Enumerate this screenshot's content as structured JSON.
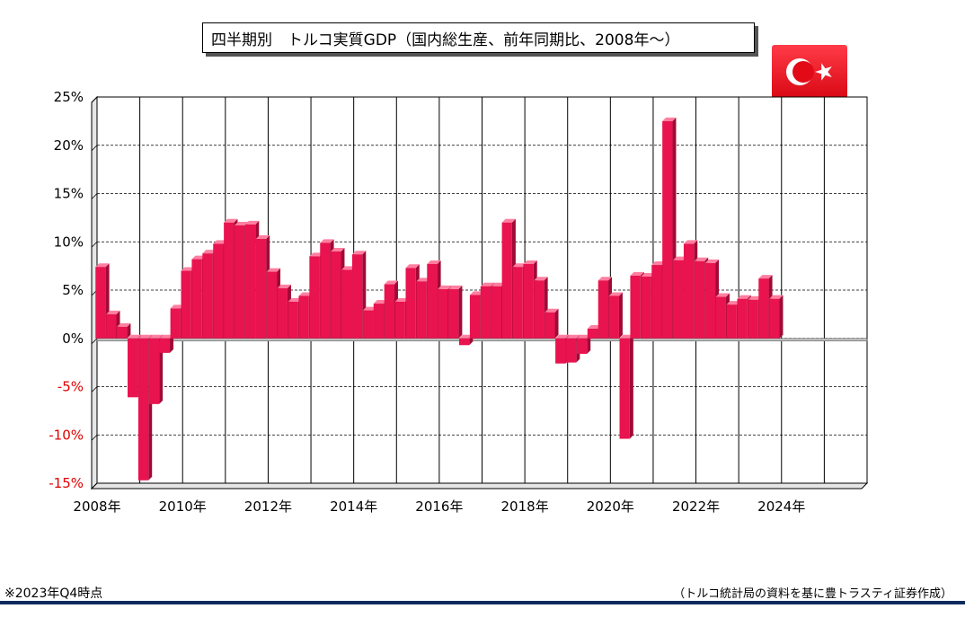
{
  "title": "四半期別　トルコ実質GDP（国内総生産、前年同期比、2008年～）",
  "footnote": "※2023年Q4時点",
  "source": "（トルコ統計局の資料を基に豊トラスティ証券作成）",
  "colors": {
    "bar": "#e8134f",
    "bar_top": "#ff7fa0",
    "bar_side": "#a10a36",
    "negative_label": "#e00000",
    "flag_red": "#e30a17",
    "rule": "#0d2a5c"
  },
  "flag_icon": "turkey-flag-icon",
  "chart_data": {
    "type": "bar",
    "title": "四半期別　トルコ実質GDP（国内総生産、前年同期比、2008年～）",
    "xlabel": "",
    "ylabel": "",
    "ylim": [
      -15,
      25
    ],
    "y_ticks": [
      "25%",
      "20%",
      "15%",
      "10%",
      "5%",
      "0%",
      "-5%",
      "-10%",
      "-15%"
    ],
    "x_ticks": [
      "2008年",
      "2010年",
      "2012年",
      "2014年",
      "2016年",
      "2018年",
      "2020年",
      "2022年",
      "2024年"
    ],
    "grid": true,
    "categories": [
      "2008Q1",
      "2008Q2",
      "2008Q3",
      "2008Q4",
      "2009Q1",
      "2009Q2",
      "2009Q3",
      "2009Q4",
      "2010Q1",
      "2010Q2",
      "2010Q3",
      "2010Q4",
      "2011Q1",
      "2011Q2",
      "2011Q3",
      "2011Q4",
      "2012Q1",
      "2012Q2",
      "2012Q3",
      "2012Q4",
      "2013Q1",
      "2013Q2",
      "2013Q3",
      "2013Q4",
      "2014Q1",
      "2014Q2",
      "2014Q3",
      "2014Q4",
      "2015Q1",
      "2015Q2",
      "2015Q3",
      "2015Q4",
      "2016Q1",
      "2016Q2",
      "2016Q3",
      "2016Q4",
      "2017Q1",
      "2017Q2",
      "2017Q3",
      "2017Q4",
      "2018Q1",
      "2018Q2",
      "2018Q3",
      "2018Q4",
      "2019Q1",
      "2019Q2",
      "2019Q3",
      "2019Q4",
      "2020Q1",
      "2020Q2",
      "2020Q3",
      "2020Q4",
      "2021Q1",
      "2021Q2",
      "2021Q3",
      "2021Q4",
      "2022Q1",
      "2022Q2",
      "2022Q3",
      "2022Q4",
      "2023Q1",
      "2023Q2",
      "2023Q3",
      "2023Q4"
    ],
    "values": [
      7.4,
      2.5,
      1.2,
      -6.1,
      -14.7,
      -6.8,
      -1.5,
      3.1,
      7.0,
      8.2,
      8.8,
      9.8,
      12.0,
      11.7,
      11.8,
      10.3,
      6.9,
      5.2,
      3.8,
      4.4,
      8.5,
      9.9,
      9.0,
      7.1,
      8.7,
      2.9,
      3.6,
      5.6,
      3.8,
      7.3,
      5.9,
      7.7,
      5.1,
      5.1,
      -0.7,
      4.5,
      5.4,
      5.4,
      12.0,
      7.4,
      7.7,
      6.0,
      2.7,
      -2.6,
      -2.5,
      -1.6,
      1.0,
      6.0,
      4.4,
      -10.4,
      6.5,
      6.4,
      7.6,
      22.5,
      8.1,
      9.8,
      8.0,
      7.8,
      4.3,
      3.5,
      4.1,
      4.0,
      6.2,
      4.1
    ]
  }
}
